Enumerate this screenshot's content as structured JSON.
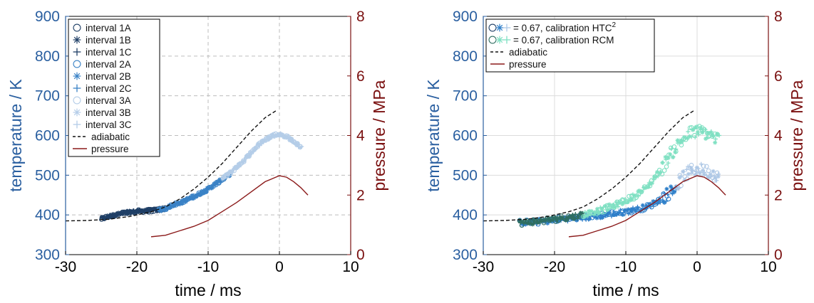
{
  "colors": {
    "temp_axis": "#2a5fa0",
    "pressure_axis": "#7a1010",
    "pressure_line": "#8b1a1a",
    "adiabatic": "#111111",
    "interval_1": "#1f3f66",
    "interval_2": "#3a82c6",
    "interval_3": "#b4cde8",
    "htc": "#2f7fc9",
    "htc_light": "#aec8e6",
    "rcm": "#7fe0c2",
    "rcm_dark": "#2f6e62"
  },
  "chart_data": [
    {
      "type": "scatter",
      "xlabel": "time / ms",
      "ylabel": "temperature / K",
      "y2label": "pressure / MPa",
      "xlim": [
        -30,
        10
      ],
      "ylim": [
        300,
        900
      ],
      "y2lim": [
        0,
        8
      ],
      "xticks": [
        "-30",
        "-20",
        "-10",
        "0",
        "10"
      ],
      "yticks": [
        "300",
        "400",
        "500",
        "600",
        "700",
        "800",
        "900"
      ],
      "y2ticks": [
        "0",
        "2",
        "4",
        "6",
        "8"
      ],
      "grid": true,
      "legend_position": "top-left",
      "legend": [
        {
          "label": "interval  1A",
          "marker": "o",
          "color_key": "interval_1"
        },
        {
          "label": "interval  1B",
          "marker": "*",
          "color_key": "interval_1"
        },
        {
          "label": "interval  1C",
          "marker": "+",
          "color_key": "interval_1"
        },
        {
          "label": "interval  2A",
          "marker": "o",
          "color_key": "interval_2"
        },
        {
          "label": "interval  2B",
          "marker": "*",
          "color_key": "interval_2"
        },
        {
          "label": "interval  2C",
          "marker": "+",
          "color_key": "interval_2"
        },
        {
          "label": "interval  3A",
          "marker": "o",
          "color_key": "interval_3"
        },
        {
          "label": "interval  3B",
          "marker": "*",
          "color_key": "interval_3"
        },
        {
          "label": "interval  3C",
          "marker": "+",
          "color_key": "interval_3"
        },
        {
          "label": "adiabatic",
          "marker": "dashed",
          "color_key": "adiabatic"
        },
        {
          "label": "pressure",
          "marker": "line",
          "color_key": "pressure_line"
        }
      ],
      "series": [
        {
          "name": "interval 1",
          "color_key": "interval_1",
          "axis": "left",
          "x": [
            -25,
            -24,
            -23,
            -22,
            -21,
            -20,
            -19,
            -18,
            -17,
            -16
          ],
          "y": [
            390,
            396,
            400,
            404,
            407,
            409,
            410,
            411,
            413,
            416
          ]
        },
        {
          "name": "interval 2",
          "color_key": "interval_2",
          "axis": "left",
          "x": [
            -17,
            -16,
            -15,
            -14,
            -13,
            -12,
            -11,
            -10,
            -9,
            -8,
            -7
          ],
          "y": [
            413,
            415,
            425,
            430,
            438,
            446,
            455,
            465,
            477,
            490,
            503
          ]
        },
        {
          "name": "interval 3",
          "color_key": "interval_3",
          "axis": "left",
          "x": [
            -8,
            -7,
            -6,
            -5,
            -4,
            -3,
            -2,
            -1,
            0,
            1,
            2,
            3
          ],
          "y": [
            492,
            505,
            520,
            537,
            556,
            575,
            590,
            600,
            603,
            597,
            585,
            570
          ]
        },
        {
          "name": "adiabatic",
          "color_key": "adiabatic",
          "axis": "left",
          "style": "dashed",
          "x": [
            -30,
            -27,
            -24,
            -21,
            -18,
            -16,
            -14,
            -12,
            -10,
            -8,
            -6,
            -4,
            -2,
            -0.5,
            -0.4
          ],
          "y": [
            385,
            386,
            389,
            396,
            408,
            420,
            440,
            465,
            495,
            530,
            570,
            610,
            645,
            662,
            660
          ]
        },
        {
          "name": "pressure",
          "color_key": "pressure_line",
          "axis": "right",
          "x": [
            -18,
            -16,
            -14,
            -12,
            -10,
            -8,
            -6,
            -4,
            -2,
            0,
            1,
            2,
            3,
            4
          ],
          "y": [
            0.6,
            0.65,
            0.8,
            0.95,
            1.15,
            1.45,
            1.75,
            2.1,
            2.45,
            2.65,
            2.6,
            2.45,
            2.25,
            2.0
          ]
        }
      ]
    },
    {
      "type": "scatter",
      "xlabel": "time / ms",
      "ylabel": "temperature / K",
      "y2label": "pressure / MPa",
      "xlim": [
        -30,
        10
      ],
      "ylim": [
        300,
        900
      ],
      "y2lim": [
        0,
        8
      ],
      "xticks": [
        "-30",
        "-20",
        "-10",
        "0",
        "10"
      ],
      "yticks": [
        "300",
        "400",
        "500",
        "600",
        "700",
        "800",
        "900"
      ],
      "y2ticks": [
        "0",
        "2",
        "4",
        "6",
        "8"
      ],
      "grid": true,
      "legend_position": "top-left",
      "legend": [
        {
          "label": "= 0.67, calibration HTC",
          "superscript": "2",
          "marker": "o*+",
          "color_key": "htc"
        },
        {
          "label": "= 0.67, calibration RCM",
          "marker": "o*+",
          "color_key": "rcm"
        },
        {
          "label": "adiabatic",
          "marker": "dashed",
          "color_key": "adiabatic"
        },
        {
          "label": "pressure",
          "marker": "line",
          "color_key": "pressure_line"
        }
      ],
      "series": [
        {
          "name": "calibration HTC",
          "color_key": "htc",
          "axis": "left",
          "x": [
            -25,
            -23,
            -21,
            -19,
            -17,
            -15,
            -13,
            -11,
            -9,
            -7,
            -5,
            -3,
            -2,
            -1,
            0,
            1,
            2,
            3
          ],
          "y": [
            380,
            382,
            385,
            390,
            392,
            395,
            400,
            405,
            412,
            420,
            440,
            470,
            495,
            510,
            515,
            512,
            505,
            500
          ]
        },
        {
          "name": "calibration RCM",
          "color_key": "rcm",
          "axis": "left",
          "x": [
            -25,
            -23,
            -21,
            -19,
            -17,
            -15,
            -13,
            -11,
            -9,
            -7,
            -5,
            -4,
            -3,
            -2,
            -1,
            0,
            1,
            2,
            3
          ],
          "y": [
            380,
            383,
            387,
            392,
            397,
            405,
            415,
            428,
            445,
            470,
            515,
            545,
            570,
            590,
            605,
            610,
            608,
            600,
            590
          ]
        },
        {
          "name": "adiabatic",
          "color_key": "adiabatic",
          "axis": "left",
          "style": "dashed",
          "x": [
            -30,
            -27,
            -24,
            -21,
            -18,
            -16,
            -14,
            -12,
            -10,
            -8,
            -6,
            -4,
            -2,
            -0.5,
            -0.4
          ],
          "y": [
            385,
            386,
            389,
            396,
            408,
            420,
            440,
            465,
            495,
            530,
            570,
            610,
            645,
            662,
            660
          ]
        },
        {
          "name": "pressure",
          "color_key": "pressure_line",
          "axis": "right",
          "x": [
            -18,
            -16,
            -14,
            -12,
            -10,
            -8,
            -6,
            -4,
            -2,
            0,
            1,
            2,
            3,
            4
          ],
          "y": [
            0.6,
            0.65,
            0.8,
            0.95,
            1.15,
            1.45,
            1.75,
            2.1,
            2.45,
            2.65,
            2.6,
            2.45,
            2.25,
            2.0
          ]
        }
      ]
    }
  ]
}
